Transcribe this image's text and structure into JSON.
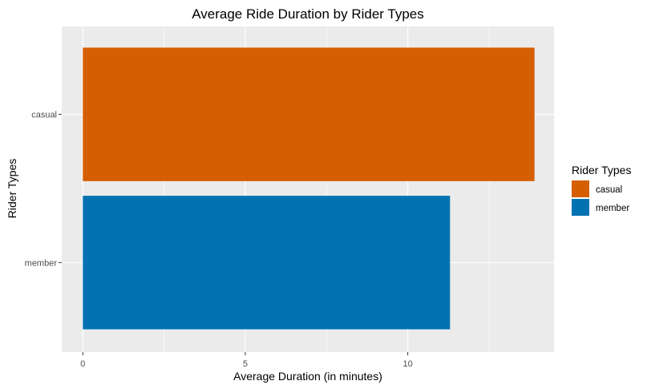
{
  "chart_data": {
    "type": "bar",
    "orientation": "horizontal",
    "title": "Average Ride Duration by Rider Types",
    "xlabel": "Average Duration (in minutes)",
    "ylabel": "Rider Types",
    "categories": [
      "casual",
      "member"
    ],
    "values": [
      13.9,
      11.3
    ],
    "colors": [
      "#d55e00",
      "#0072b2"
    ],
    "xlim": [
      -0.65,
      14.5
    ],
    "xticks": [
      0,
      5,
      10
    ],
    "xtick_labels": [
      "0",
      "5",
      "10"
    ],
    "grid": true,
    "panel_background": "#ebebeb",
    "grid_color": "#ffffff",
    "legend": {
      "title": "Rider Types",
      "placement": "right",
      "entries": [
        {
          "label": "casual",
          "color": "#d55e00"
        },
        {
          "label": "member",
          "color": "#0072b2"
        }
      ]
    }
  }
}
